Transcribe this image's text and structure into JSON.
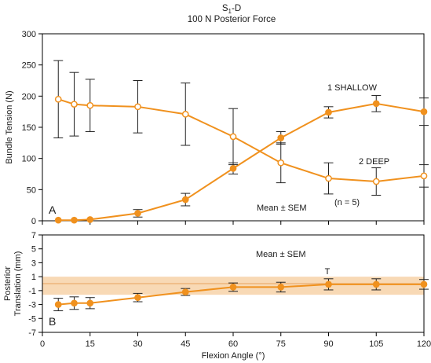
{
  "figure": {
    "title_main": "S",
    "title_sub": "1",
    "title_suffix": "-D",
    "subtitle": "100 N Posterior Force"
  },
  "colors": {
    "series": "#f0911e",
    "band": "#f8d9b5",
    "bandLine": "#e8a45e",
    "axis": "#000000"
  },
  "chart_data": [
    {
      "type": "line",
      "panel_label": "A",
      "ylabel": "Bundle Tension (N)",
      "ylim": [
        0,
        300
      ],
      "yticks": [
        0,
        50,
        100,
        150,
        200,
        250,
        300
      ],
      "xlim": [
        0,
        120
      ],
      "xticks": [
        0,
        15,
        30,
        45,
        60,
        75,
        90,
        105,
        120
      ],
      "annotations": [
        "Mean ± SEM",
        "(n = 5)"
      ],
      "series": [
        {
          "name": "1 SHALLOW",
          "marker": "filled",
          "x": [
            5,
            10,
            15,
            30,
            45,
            60,
            75,
            90,
            105,
            120
          ],
          "y": [
            1,
            1,
            2,
            12,
            34,
            84,
            133,
            174,
            188,
            175
          ],
          "err": [
            0,
            0,
            0,
            6,
            10,
            9,
            10,
            9,
            13,
            22
          ]
        },
        {
          "name": "2 DEEP",
          "marker": "open",
          "x": [
            5,
            10,
            15,
            30,
            45,
            60,
            75,
            90,
            105,
            120
          ],
          "y": [
            195,
            187,
            185,
            183,
            171,
            135,
            93,
            68,
            63,
            72
          ],
          "err": [
            62,
            51,
            42,
            42,
            50,
            45,
            32,
            25,
            22,
            18
          ]
        }
      ]
    },
    {
      "type": "line",
      "panel_label": "B",
      "ylabel": "Posterior Translation (mm)",
      "ylim": [
        -7,
        7
      ],
      "yticks": [
        -7,
        -5,
        -3,
        -1,
        1,
        3,
        5,
        7
      ],
      "xlim": [
        0,
        120
      ],
      "xticks": [
        0,
        15,
        30,
        45,
        60,
        75,
        90,
        105,
        120
      ],
      "xlabel": "Flexion Angle (°)",
      "annotations": [
        "Mean ± SEM",
        "T"
      ],
      "band": [
        -1.6,
        1.0
      ],
      "band_mid": 0,
      "series": [
        {
          "name": "",
          "marker": "filled",
          "x": [
            5,
            10,
            15,
            30,
            45,
            60,
            75,
            90,
            105,
            120
          ],
          "y": [
            -3.0,
            -2.8,
            -2.8,
            -2.0,
            -1.2,
            -0.5,
            -0.5,
            -0.1,
            -0.1,
            -0.1
          ],
          "err": [
            0.9,
            0.9,
            0.8,
            0.6,
            0.5,
            0.6,
            0.7,
            0.8,
            0.8,
            0.7
          ]
        }
      ]
    }
  ]
}
